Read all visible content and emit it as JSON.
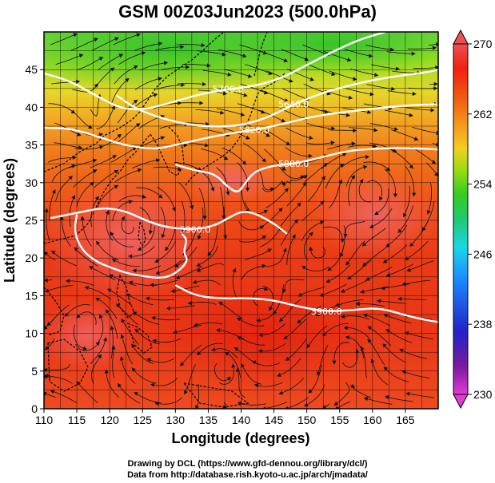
{
  "title": "GSM 00Z03Jun2023 (500.0hPa)",
  "chart_data": {
    "type": "heatmap",
    "field": "500.0hPa",
    "xlabel": "Longitude (degrees)",
    "ylabel": "Latitude  (degrees)",
    "xlim": [
      110,
      170
    ],
    "ylim": [
      0,
      50
    ],
    "xticks": [
      "110",
      "115",
      "120",
      "125",
      "130",
      "135",
      "140",
      "145",
      "150",
      "155",
      "160",
      "165"
    ],
    "yticks": [
      "0",
      "5",
      "10",
      "15",
      "20",
      "25",
      "30",
      "35",
      "40",
      "45"
    ],
    "colorbar": {
      "ticks": [
        "230",
        "238",
        "246",
        "254",
        "262",
        "270"
      ],
      "range": [
        230,
        270
      ],
      "colors": [
        "#e23ad6",
        "#7a1aa0",
        "#2222c8",
        "#1a8cff",
        "#18d8e8",
        "#22c870",
        "#33cc22",
        "#99dd11",
        "#f0d020",
        "#f5a020",
        "#f06010",
        "#f02010",
        "#f05050"
      ]
    },
    "contours": [
      {
        "label": "5700.0",
        "points": [
          [
            110,
            44.5
          ],
          [
            114,
            43.5
          ],
          [
            118,
            41.5
          ],
          [
            122,
            39.7
          ],
          [
            126,
            39.8
          ],
          [
            130,
            40.8
          ],
          [
            134,
            41.8
          ],
          [
            138,
            42.4
          ],
          [
            142,
            42.8
          ],
          [
            146,
            43.8
          ],
          [
            150,
            45.6
          ],
          [
            154,
            47.4
          ],
          [
            158,
            49.0
          ],
          [
            162,
            50.0
          ]
        ]
      },
      {
        "label": "5640.0",
        "points": [
          [
            121,
            41.6
          ],
          [
            124,
            39.8
          ],
          [
            128,
            38.5
          ],
          [
            132,
            37.7
          ],
          [
            136,
            37.4
          ],
          [
            140,
            37.6
          ],
          [
            144,
            38.6
          ],
          [
            148,
            40.4
          ],
          [
            152,
            41.8
          ],
          [
            156,
            42.8
          ],
          [
            160,
            43.6
          ],
          [
            164,
            44.2
          ],
          [
            168,
            44.6
          ],
          [
            170,
            45.0
          ]
        ]
      },
      {
        "label": "5820.0",
        "points": [
          [
            110,
            37.3
          ],
          [
            114,
            37.2
          ],
          [
            118,
            36.2
          ],
          [
            122,
            35.0
          ],
          [
            126,
            34.5
          ],
          [
            128,
            34.6
          ],
          [
            131,
            35.2
          ],
          [
            134,
            35.8
          ],
          [
            138,
            36.5
          ],
          [
            142,
            37.0
          ],
          [
            146,
            37.7
          ],
          [
            150,
            38.6
          ],
          [
            154,
            39.2
          ],
          [
            158,
            39.6
          ],
          [
            162,
            40.0
          ],
          [
            166,
            40.3
          ],
          [
            170,
            40.4
          ]
        ]
      },
      {
        "label": "5880.0",
        "points": [
          [
            130,
            32.4
          ],
          [
            133,
            31.6
          ],
          [
            136,
            31.2
          ],
          [
            138,
            29.4
          ],
          [
            139.5,
            28.6
          ],
          [
            140.5,
            29.8
          ],
          [
            142,
            31.5
          ],
          [
            145,
            32.3
          ],
          [
            148,
            32.5
          ],
          [
            152,
            33.3
          ],
          [
            156,
            34.2
          ],
          [
            160,
            34.5
          ],
          [
            164,
            34.6
          ],
          [
            168,
            34.5
          ],
          [
            170,
            34.4
          ]
        ]
      },
      {
        "label": "5900.0",
        "points": [
          [
            111,
            25.3
          ],
          [
            115,
            26.0
          ],
          [
            119,
            26.7
          ],
          [
            122,
            26.3
          ],
          [
            124,
            25.6
          ],
          [
            126,
            24.8
          ],
          [
            129,
            24.0
          ],
          [
            133,
            23.8
          ],
          [
            136,
            24.3
          ],
          [
            138,
            25.3
          ],
          [
            140,
            26.2
          ],
          [
            142,
            26.0
          ],
          [
            145,
            24.6
          ],
          [
            147,
            23.2
          ]
        ]
      },
      {
        "label": "",
        "points": [
          [
            115,
            25.8
          ],
          [
            114.6,
            23.4
          ],
          [
            115.8,
            21.0
          ],
          [
            118,
            19.5
          ],
          [
            120,
            18.8
          ],
          [
            122.5,
            18.0
          ],
          [
            125,
            17.6
          ],
          [
            128,
            17.3
          ],
          [
            130,
            17.9
          ],
          [
            132,
            19.6
          ],
          [
            131.2,
            20.8
          ],
          [
            131.8,
            22.4
          ],
          [
            131,
            23.2
          ]
        ]
      },
      {
        "label": "5900.0",
        "points": [
          [
            130,
            16.4
          ],
          [
            133,
            15.0
          ],
          [
            137,
            14.6
          ],
          [
            141,
            14.7
          ],
          [
            145,
            14.4
          ],
          [
            149,
            13.5
          ],
          [
            153,
            12.9
          ],
          [
            157,
            13.1
          ],
          [
            161,
            13.4
          ],
          [
            165,
            12.4
          ],
          [
            168,
            11.8
          ],
          [
            170,
            11.5
          ]
        ]
      }
    ]
  },
  "credits": {
    "line1": "Drawing by DCL (https://www.gfd-dennou.org/library/dcl/)",
    "line2": "Data from http://database.rish.kyoto-u.ac.jp/arch/jmadata/"
  }
}
